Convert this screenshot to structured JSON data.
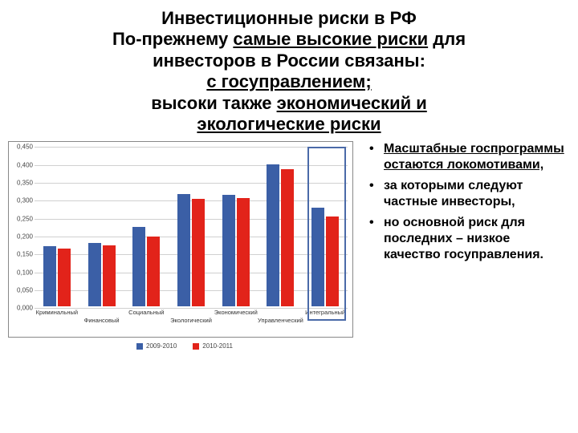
{
  "title": {
    "line1": "Инвестиционные риски в РФ",
    "line2_pre": "По-прежнему",
    "line2_u": "самые высокие риски",
    "line2_post": "для",
    "line3": "инвесторов в России связаны:",
    "line4_u": "с госуправлением;",
    "line5_pre": "высоки также",
    "line5_u": "экономический и",
    "line6_u": "экологические риски"
  },
  "bullets": [
    {
      "dot": "•",
      "text_u": "Масштабные госпрограммы остаются локомотивами,",
      "text_plain": ""
    },
    {
      "dot": "•",
      "text_u": "",
      "text_plain": "за которыми следуют частные инвесторы,"
    },
    {
      "dot": "•",
      "text_u": "",
      "text_plain": "но основной риск для последних – низкое качество госуправления."
    }
  ],
  "chart": {
    "type": "bar",
    "ymin": 0.0,
    "ymax": 0.45,
    "ytick_step": 0.05,
    "ytick_labels": [
      "0,000",
      "0,050",
      "0,100",
      "0,150",
      "0,200",
      "0,250",
      "0,300",
      "0,350",
      "0,400",
      "0,450"
    ],
    "categories": [
      "Криминальный",
      "Финансовый",
      "Социальный",
      "Экологический",
      "Экономический",
      "Управленческий",
      "Интегральный"
    ],
    "cat_label_rows": [
      "high",
      "low",
      "high",
      "low",
      "high",
      "low",
      "high"
    ],
    "series": [
      {
        "name": "2009-2010",
        "color": "#3b5fa6",
        "values": [
          0.17,
          0.18,
          0.225,
          0.317,
          0.315,
          0.4,
          0.278
        ]
      },
      {
        "name": "2010-2011",
        "color": "#e2231a",
        "values": [
          0.163,
          0.173,
          0.197,
          0.303,
          0.307,
          0.387,
          0.253
        ]
      }
    ],
    "grid_color": "#d0d0d0",
    "border_color": "#888888",
    "background_color": "#ffffff",
    "highlight_category_index": 6,
    "highlight_border_color": "#4a6aa8"
  }
}
